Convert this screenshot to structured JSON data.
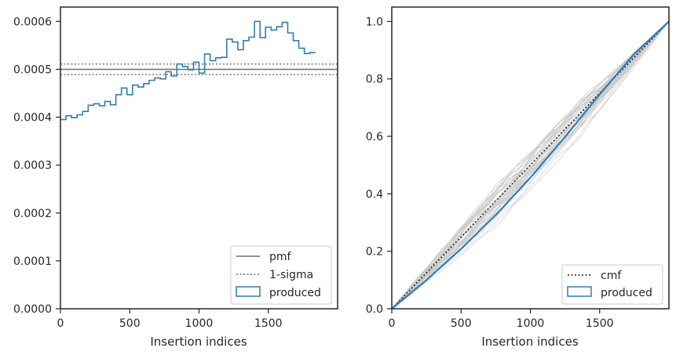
{
  "chart_data": [
    {
      "type": "line",
      "panel": "left",
      "xlabel": "Insertion indices",
      "ylabel": "",
      "xlim": [
        0,
        2000
      ],
      "ylim": [
        0,
        0.00063
      ],
      "xticks": [
        0,
        500,
        1000,
        1500
      ],
      "yticks": [
        0.0,
        0.0001,
        0.0002,
        0.0003,
        0.0004,
        0.0005,
        0.0006
      ],
      "ytick_labels": [
        "0.0000",
        "0.0001",
        "0.0002",
        "0.0003",
        "0.0004",
        "0.0005",
        "0.0006"
      ],
      "grid": false,
      "legend_position": "lower-right",
      "legend": [
        "pmf",
        "1-sigma",
        "produced"
      ],
      "pmf": 0.0005,
      "sigma_band": [
        0.000489,
        0.000511
      ],
      "bin_width": 40,
      "histogram_values": [
        0.000395,
        0.000403,
        0.000399,
        0.000405,
        0.000412,
        0.000425,
        0.000428,
        0.000424,
        0.000433,
        0.000426,
        0.000447,
        0.000461,
        0.000447,
        0.000467,
        0.000463,
        0.00047,
        0.000477,
        0.000482,
        0.00048,
        0.000495,
        0.000486,
        0.000511,
        0.000506,
        0.000499,
        0.000515,
        0.000492,
        0.000532,
        0.000518,
        0.000524,
        0.000525,
        0.000563,
        0.000557,
        0.000541,
        0.00056,
        0.000567,
        0.0006,
        0.000566,
        0.000588,
        0.000582,
        0.000589,
        0.000598,
        0.000576,
        0.00056,
        0.000544,
        0.000533,
        0.000535
      ]
    },
    {
      "type": "line",
      "panel": "right",
      "xlabel": "Insertion indices",
      "ylabel": "",
      "xlim": [
        0,
        2000
      ],
      "ylim": [
        0,
        1.05
      ],
      "xticks": [
        0,
        500,
        1000,
        1500
      ],
      "yticks": [
        0.0,
        0.2,
        0.4,
        0.6,
        0.8,
        1.0
      ],
      "ytick_labels": [
        "0.0",
        "0.2",
        "0.4",
        "0.6",
        "0.8",
        "1.0"
      ],
      "grid": false,
      "legend_position": "lower-right",
      "legend": [
        "cmf",
        "produced"
      ],
      "cmf_x": [
        0,
        2000
      ],
      "cmf_y": [
        0,
        1
      ],
      "produced_x": [
        0,
        250,
        500,
        750,
        1000,
        1250,
        1500,
        1750,
        2000
      ],
      "produced_y": [
        0,
        0.1,
        0.208,
        0.326,
        0.456,
        0.598,
        0.746,
        0.887,
        1.0
      ],
      "realization_count": 40
    }
  ],
  "colors": {
    "produced": "#2f7fb5",
    "pmf": "#6e6e6e",
    "sigma": "#6e6e6e",
    "cmf": "#1a1a1a",
    "realizations": "#c8c8c8",
    "axis": "#262626"
  }
}
